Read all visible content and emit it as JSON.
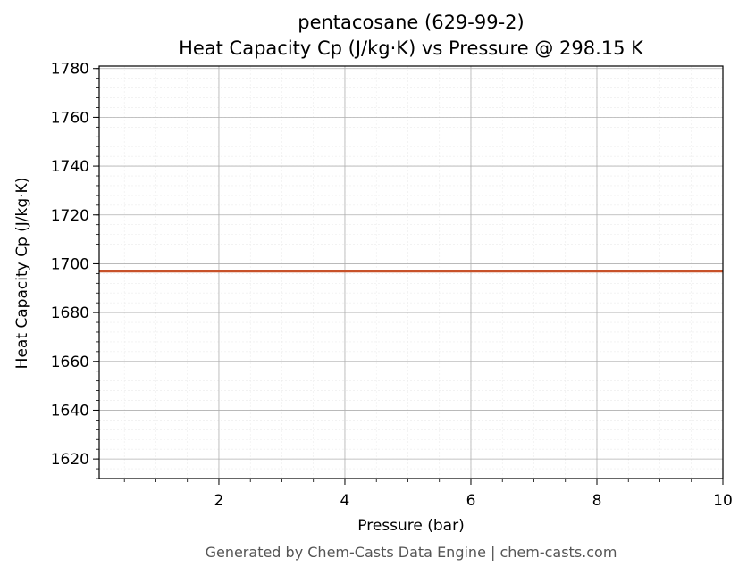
{
  "chart_data": {
    "type": "line",
    "title": "pentacosane (629-99-2)",
    "subtitle": "Heat Capacity Cp (J/kg·K) vs Pressure @ 298.15 K",
    "xlabel": "Pressure (bar)",
    "ylabel": "Heat Capacity Cp (J/kg·K)",
    "xlim": [
      0.1,
      10
    ],
    "ylim": [
      1612,
      1781
    ],
    "x_ticks": [
      2,
      4,
      6,
      8,
      10
    ],
    "y_ticks": [
      1620,
      1640,
      1660,
      1680,
      1700,
      1720,
      1740,
      1760,
      1780
    ],
    "grid": true,
    "minor_grid": true,
    "series": [
      {
        "color": "#c8522a",
        "x": [
          0.1,
          1,
          2,
          3,
          4,
          5,
          6,
          7,
          8,
          9,
          10
        ],
        "y": [
          1697,
          1697,
          1697,
          1697,
          1697,
          1697,
          1697,
          1697,
          1697,
          1697,
          1697
        ]
      }
    ]
  },
  "footer": "Generated by Chem-Casts Data Engine | chem-casts.com"
}
